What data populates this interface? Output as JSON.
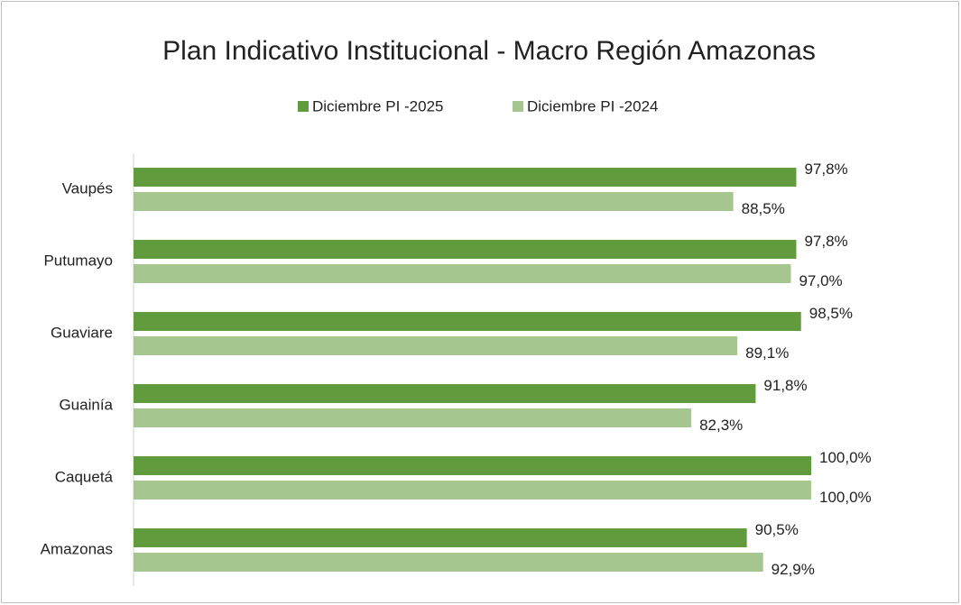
{
  "chart_data": {
    "type": "bar",
    "orientation": "horizontal",
    "title": "Plan Indicativo Institucional - Macro Región Amazonas",
    "categories": [
      "Vaupés",
      "Putumayo",
      "Guaviare",
      "Guainía",
      "Caquetá",
      "Amazonas"
    ],
    "series": [
      {
        "name": "Diciembre PI -2025",
        "color": "#629b3e",
        "values": [
          97.8,
          97.8,
          98.5,
          91.8,
          100.0,
          90.5
        ],
        "value_labels": [
          "97,8%",
          "97,8%",
          "98,5%",
          "91,8%",
          "100,0%",
          "90,5%"
        ]
      },
      {
        "name": "Diciembre PI -2024",
        "color": "#a5c78f",
        "values": [
          88.5,
          97.0,
          89.1,
          82.3,
          100.0,
          92.9
        ],
        "value_labels": [
          "88,5%",
          "97,0%",
          "89,1%",
          "82,3%",
          "100,0%",
          "92,9%"
        ]
      }
    ],
    "xlim": [
      0,
      100
    ],
    "legend": "top"
  }
}
